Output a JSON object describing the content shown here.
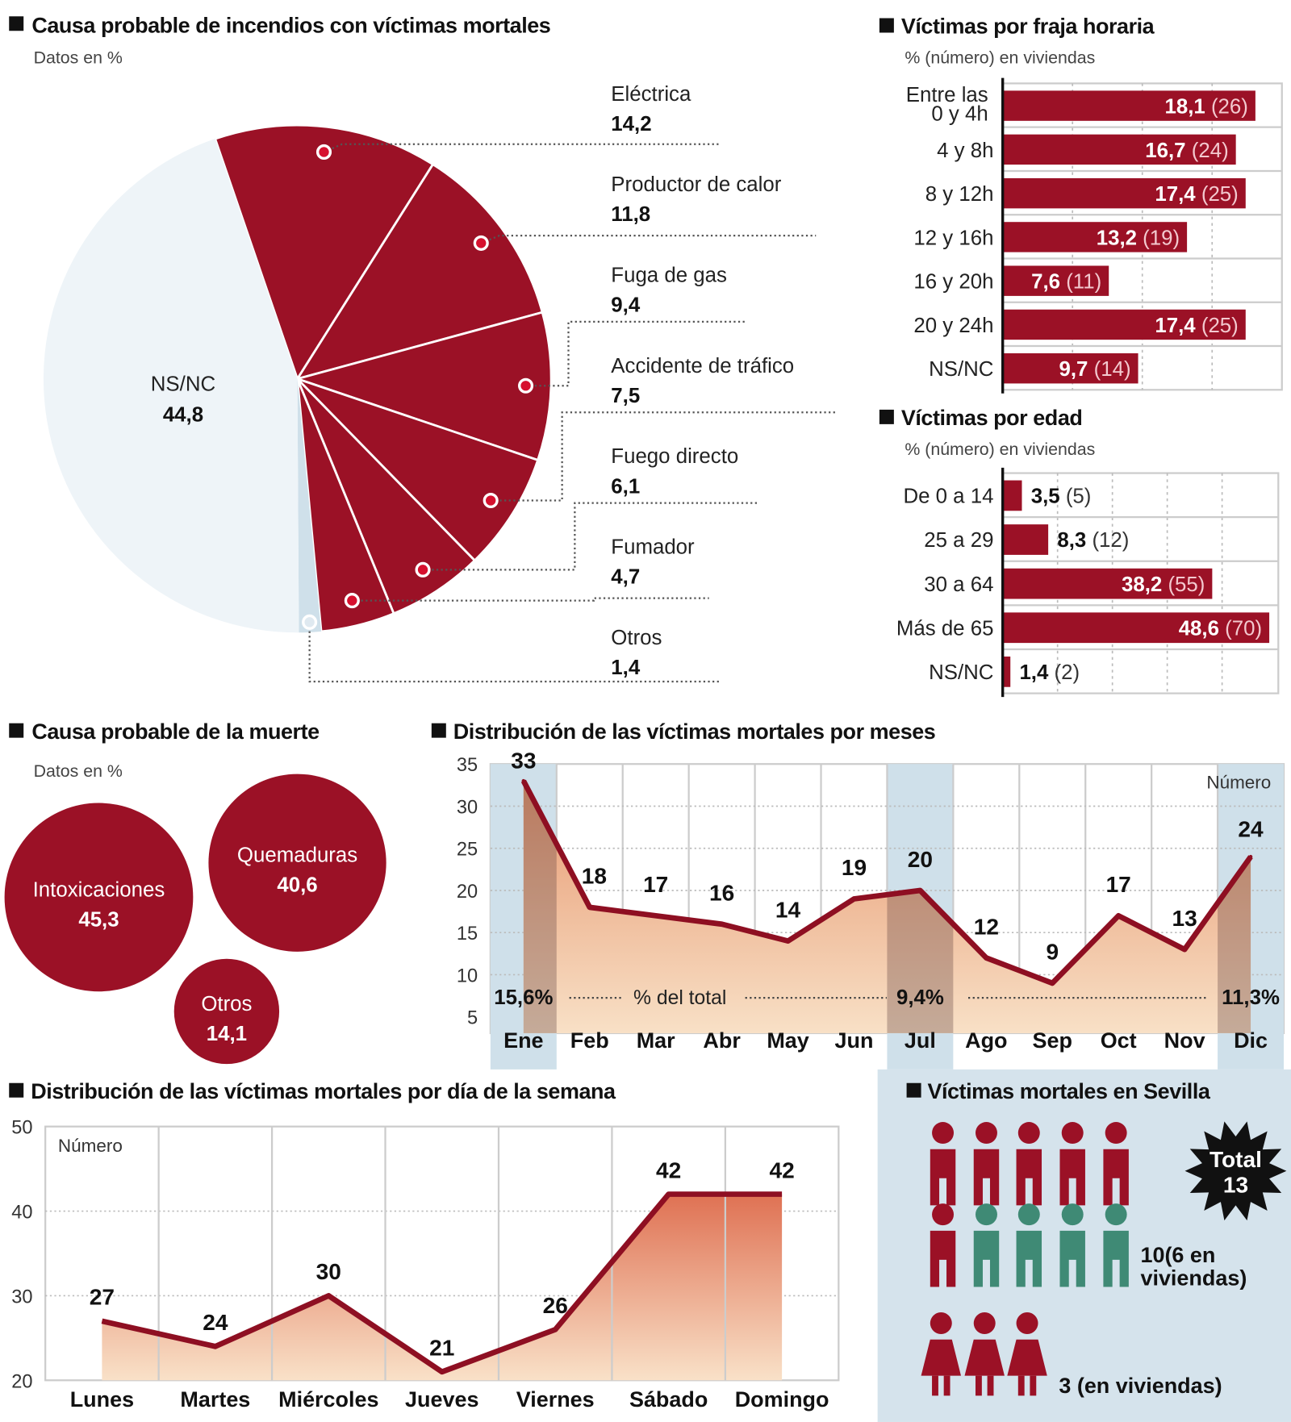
{
  "colors": {
    "accent_red": "#9b1126",
    "pie_unknown": "#eef4f8",
    "pie_otros": "#cfe0ea",
    "highlight_blue": "#cfe0ea",
    "green": "#3f8a75",
    "panel_bg": "#d5e3ec"
  },
  "fire_causes": {
    "title": "Causa probable de incendios con víctimas mortales",
    "subtitle": "Datos en %",
    "chart_data": {
      "type": "pie",
      "slices": [
        {
          "label": "Eléctrica",
          "value": 14.2,
          "display": "14,2",
          "color": "#9b1126"
        },
        {
          "label": "Productor de calor",
          "value": 11.8,
          "display": "11,8",
          "color": "#9b1126"
        },
        {
          "label": "Fuga de gas",
          "value": 9.4,
          "display": "9,4",
          "color": "#9b1126"
        },
        {
          "label": "Accidente de tráfico",
          "value": 7.5,
          "display": "7,5",
          "color": "#9b1126"
        },
        {
          "label": "Fuego directo",
          "value": 6.1,
          "display": "6,1",
          "color": "#9b1126"
        },
        {
          "label": "Fumador",
          "value": 4.7,
          "display": "4,7",
          "color": "#9b1126"
        },
        {
          "label": "Otros",
          "value": 1.4,
          "display": "1,4",
          "color": "#cfe0ea"
        },
        {
          "label": "NS/NC",
          "value": 44.8,
          "display": "44,8",
          "color": "#eef4f8"
        }
      ]
    }
  },
  "time_band": {
    "title": "Víctimas por fraja horaria",
    "subtitle": "% (número) en viviendas",
    "chart_data": {
      "type": "bar",
      "orientation": "horizontal",
      "xlim": [
        0,
        20
      ],
      "grid": true,
      "categories": [
        [
          "Entre las",
          "0 y 4h"
        ],
        [
          "4 y 8h"
        ],
        [
          "8 y 12h"
        ],
        [
          "12 y 16h"
        ],
        [
          "16 y 20h"
        ],
        [
          "20 y 24h"
        ],
        [
          "NS/NC"
        ]
      ],
      "values": [
        18.1,
        16.7,
        17.4,
        13.2,
        7.6,
        17.4,
        9.7
      ],
      "value_labels": [
        "18,1",
        "16,7",
        "17,4",
        "13,2",
        "7,6",
        "17,4",
        "9,7"
      ],
      "counts": [
        "(26)",
        "(24)",
        "(25)",
        "(19)",
        "(11)",
        "(25)",
        "(14)"
      ]
    }
  },
  "age": {
    "title": "Víctimas por edad",
    "subtitle": "% (número) en viviendas",
    "chart_data": {
      "type": "bar",
      "orientation": "horizontal",
      "xlim": [
        0,
        50
      ],
      "grid": true,
      "categories": [
        "De 0 a 14",
        "25 a 29",
        "30 a 64",
        "Más de 65",
        "NS/NC"
      ],
      "values": [
        3.5,
        8.3,
        38.2,
        48.6,
        1.4
      ],
      "value_labels": [
        "3,5",
        "8,3",
        "38,2",
        "48,6",
        "1,4"
      ],
      "counts": [
        "(5)",
        "(12)",
        "(55)",
        "(70)",
        "(2)"
      ]
    }
  },
  "death_cause": {
    "title": "Causa probable de la muerte",
    "subtitle": "Datos en %",
    "chart_data": {
      "type": "bubble",
      "items": [
        {
          "label": "Intoxicaciones",
          "value": 45.3,
          "display": "45,3"
        },
        {
          "label": "Quemaduras",
          "value": 40.6,
          "display": "40,6"
        },
        {
          "label": "Otros",
          "value": 14.1,
          "display": "14,1"
        }
      ]
    }
  },
  "months": {
    "title": "Distribución de las víctimas mortales por meses",
    "unit_label": "Número",
    "pct_caption": "% del total",
    "chart_data": {
      "type": "area",
      "categories": [
        "Ene",
        "Feb",
        "Mar",
        "Abr",
        "May",
        "Jun",
        "Jul",
        "Ago",
        "Sep",
        "Oct",
        "Nov",
        "Dic"
      ],
      "values": [
        33,
        18,
        17,
        16,
        14,
        19,
        20,
        12,
        9,
        17,
        13,
        24
      ],
      "ylim": [
        5,
        35
      ],
      "yticks": [
        5,
        10,
        15,
        20,
        25,
        30,
        35
      ],
      "grid": true,
      "highlighted": [
        {
          "month": "Ene",
          "pct": "15,6%"
        },
        {
          "month": "Jul",
          "pct": "9,4%"
        },
        {
          "month": "Dic",
          "pct": "11,3%"
        }
      ]
    }
  },
  "weekdays": {
    "title": "Distribución de las víctimas mortales por día de la semana",
    "unit_label": "Número",
    "chart_data": {
      "type": "area",
      "categories": [
        "Lunes",
        "Martes",
        "Miércoles",
        "Jueves",
        "Viernes",
        "Sábado",
        "Domingo"
      ],
      "values": [
        27,
        24,
        30,
        21,
        26,
        42,
        42
      ],
      "ylim": [
        20,
        50
      ],
      "yticks": [
        20,
        30,
        40,
        50
      ],
      "grid": true
    }
  },
  "sevilla": {
    "title": "Víctimas mortales en Sevilla",
    "total_label": "Total",
    "total_value": "13",
    "men_label_1": "10(6 en",
    "men_label_2": "viviendas)",
    "women_label": "3 (en viviendas)",
    "men_total": 10,
    "men_in_homes": 6,
    "women_total": 3
  }
}
